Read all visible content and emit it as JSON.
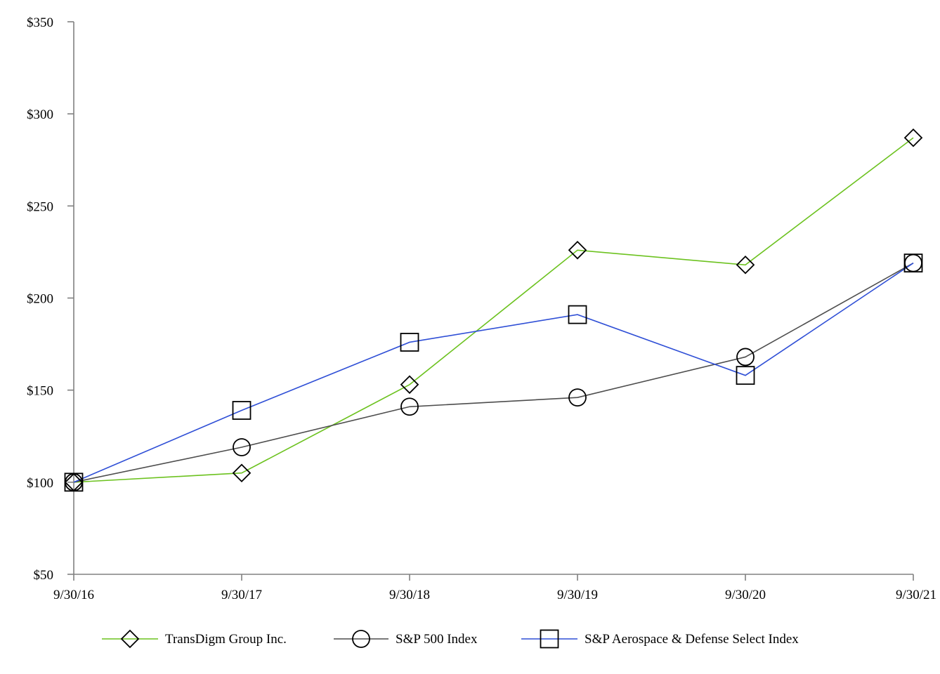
{
  "chart_data": {
    "type": "line",
    "title": "",
    "xlabel": "",
    "ylabel": "",
    "categories": [
      "9/30/16",
      "9/30/17",
      "9/30/18",
      "9/30/19",
      "9/30/20",
      "9/30/21"
    ],
    "ylim": [
      50,
      350
    ],
    "yticks": [
      50,
      100,
      150,
      200,
      250,
      300,
      350
    ],
    "ytick_labels": [
      "$50",
      "$100",
      "$150",
      "$200",
      "$250",
      "$300",
      "$350"
    ],
    "grid": false,
    "legend_position": "bottom",
    "series": [
      {
        "name": "TransDigm Group Inc.",
        "values": [
          100,
          105,
          153,
          226,
          218,
          287
        ],
        "color": "#6cc21f",
        "marker": "diamond"
      },
      {
        "name": "S&P 500 Index",
        "values": [
          100,
          119,
          141,
          146,
          168,
          219
        ],
        "color": "#4d4d4d",
        "marker": "circle"
      },
      {
        "name": "S&P Aerospace & Defense Select Index",
        "values": [
          100,
          139,
          176,
          191,
          158,
          219
        ],
        "color": "#2f4fd6",
        "marker": "square"
      }
    ]
  }
}
